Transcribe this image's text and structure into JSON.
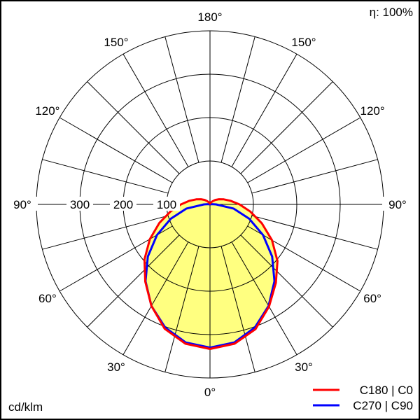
{
  "chart_data": {
    "type": "polar",
    "unit_label": "cd/klm",
    "efficiency_label": "η: 100%",
    "radial_axis": {
      "min": 0,
      "max": 400,
      "circles": [
        100,
        200,
        300,
        400
      ],
      "tick_labels": [
        "100",
        "200",
        "300"
      ]
    },
    "angle_labels": [
      {
        "angle": 0,
        "label": "0°"
      },
      {
        "angle": 30,
        "label": "30°"
      },
      {
        "angle": 60,
        "label": "60°"
      },
      {
        "angle": 90,
        "label": "90°"
      },
      {
        "angle": 120,
        "label": "120°"
      },
      {
        "angle": 150,
        "label": "150°"
      },
      {
        "angle": 180,
        "label": "180°"
      }
    ],
    "radial_line_step_deg": 15,
    "grid": true,
    "fill_color": "#ffff80",
    "legend_position": "bottom-right",
    "gamma": [
      0,
      10,
      20,
      30,
      40,
      50,
      60,
      70,
      80,
      90,
      100,
      110,
      120,
      130,
      140,
      150,
      160,
      170,
      180
    ],
    "series": [
      {
        "name": "C180 | C0",
        "color": "#ff0000",
        "left_values": [
          333,
          326,
          305,
          270,
          232,
          197,
          160,
          124,
          92,
          67,
          48,
          34,
          24,
          16,
          10,
          6,
          4,
          2,
          2
        ],
        "right_values": [
          333,
          326,
          306,
          272,
          236,
          203,
          165,
          127,
          94,
          68,
          48,
          34,
          24,
          16,
          10,
          6,
          4,
          2,
          2
        ]
      },
      {
        "name": "C270 | C90",
        "color": "#0000ff",
        "left_values": [
          330,
          323,
          302,
          270,
          231,
          187,
          141,
          96,
          55,
          14,
          4,
          0,
          0,
          0,
          0,
          0,
          0,
          0,
          0
        ],
        "right_values": [
          330,
          323,
          302,
          270,
          231,
          187,
          141,
          96,
          55,
          14,
          4,
          0,
          0,
          0,
          0,
          0,
          0,
          0,
          0
        ]
      }
    ]
  }
}
